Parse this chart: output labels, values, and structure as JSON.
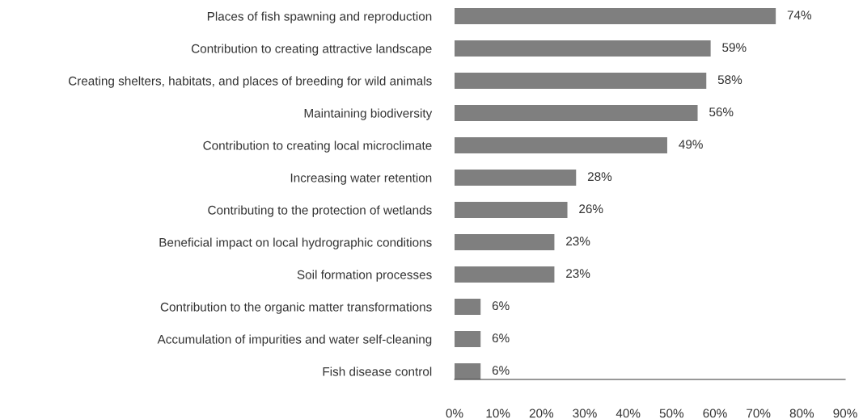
{
  "chart_data": {
    "type": "bar",
    "orientation": "horizontal",
    "categories": [
      "Places of fish spawning and reproduction",
      "Contribution to creating attractive landscape",
      "Creating shelters, habitats, and places of breeding for wild animals",
      "Maintaining biodiversity",
      "Contribution to creating local microclimate",
      "Increasing water retention",
      "Contributing to the protection of wetlands",
      "Beneficial impact on local hydrographic conditions",
      "Soil formation processes",
      "Contribution to the organic matter transformations",
      "Accumulation of impurities and water self-cleaning",
      "Fish disease control"
    ],
    "values": [
      74,
      59,
      58,
      56,
      49,
      28,
      26,
      23,
      23,
      6,
      6,
      6
    ],
    "value_labels": [
      "74%",
      "59%",
      "58%",
      "56%",
      "49%",
      "28%",
      "26%",
      "23%",
      "23%",
      "6%",
      "6%",
      "6%"
    ],
    "color": "#7f7f7f",
    "xlim": [
      0,
      90
    ],
    "xticks": [
      {
        "value": 0,
        "label": "0%"
      },
      {
        "value": 10,
        "label": "10%"
      },
      {
        "value": 20,
        "label": "20%"
      },
      {
        "value": 30,
        "label": "30%"
      },
      {
        "value": 40,
        "label": "40%"
      },
      {
        "value": 50,
        "label": "50%"
      },
      {
        "value": 60,
        "label": "60%"
      },
      {
        "value": 70,
        "label": "70%"
      },
      {
        "value": 80,
        "label": "80%"
      },
      {
        "value": 90,
        "label": "90%"
      }
    ],
    "grid": false
  }
}
